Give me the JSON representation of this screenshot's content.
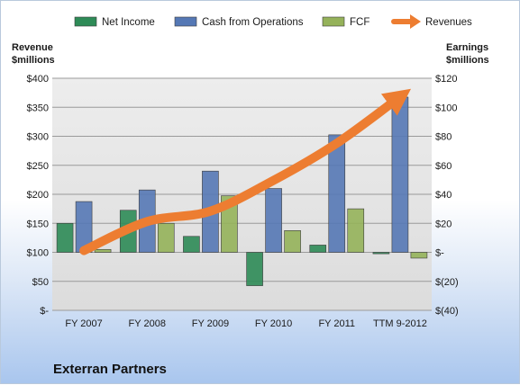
{
  "chart_data": {
    "type": "bar",
    "title": "Exterran Partners",
    "categories": [
      "FY 2007",
      "FY 2008",
      "FY 2009",
      "FY 2010",
      "FY 2011",
      "TTM 9-2012"
    ],
    "series": [
      {
        "name": "Net Income",
        "axis": "right",
        "kind": "bar",
        "color": "#2e8b57",
        "values": [
          20,
          29,
          11,
          -23,
          5,
          -1
        ]
      },
      {
        "name": "Cash from Operations",
        "axis": "right",
        "kind": "bar",
        "color": "#5578b5",
        "values": [
          35,
          43,
          56,
          44,
          81,
          107
        ]
      },
      {
        "name": "FCF",
        "axis": "right",
        "kind": "bar",
        "color": "#95b25a",
        "values": [
          2,
          20,
          39,
          15,
          30,
          -4
        ]
      },
      {
        "name": "Revenues",
        "axis": "left",
        "kind": "line",
        "color": "#ed7d31",
        "values": [
          103,
          153,
          171,
          224,
          288,
          368
        ]
      }
    ],
    "left_axis": {
      "label_line1": "Revenue",
      "label_line2": "$millions",
      "range": [
        0,
        400
      ],
      "ticks": [
        0,
        50,
        100,
        150,
        200,
        250,
        300,
        350,
        400
      ],
      "tick_labels": [
        "$-",
        "$50",
        "$100",
        "$150",
        "$200",
        "$250",
        "$300",
        "$350",
        "$400"
      ]
    },
    "right_axis": {
      "label_line1": "Earnings",
      "label_line2": "$millions",
      "range": [
        -40,
        120
      ],
      "ticks": [
        -40,
        -20,
        0,
        20,
        40,
        60,
        80,
        100,
        120
      ],
      "tick_labels": [
        "$(40)",
        "$(20)",
        "$-",
        "$20",
        "$40",
        "$60",
        "$80",
        "$100",
        "$120"
      ]
    },
    "grid": true,
    "legend_position": "top"
  }
}
